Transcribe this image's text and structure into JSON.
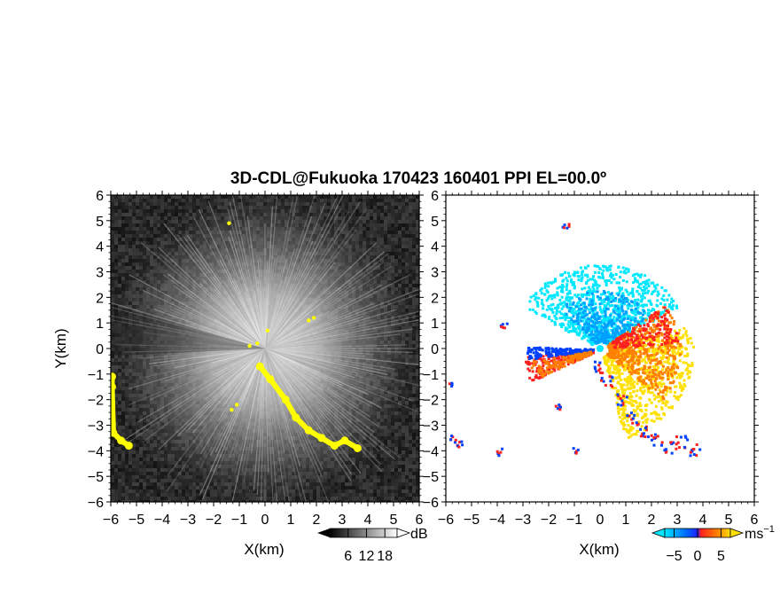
{
  "title": "3D-CDL@Fukuoka 170423 160401 PPI EL=00.0º",
  "chart_data": [
    {
      "type": "heatmap",
      "panel": "left",
      "quantity": "reflectivity / SNR",
      "xlabel": "X(km)",
      "ylabel": "Y(km)",
      "xlim": [
        -6,
        6
      ],
      "ylim": [
        -6,
        6
      ],
      "xticks": [
        "−6",
        "−5",
        "−4",
        "−3",
        "−2",
        "−1",
        "0",
        "1",
        "2",
        "3",
        "4",
        "5",
        "6"
      ],
      "yticks": [
        "−6",
        "−5",
        "−4",
        "−3",
        "−2",
        "−1",
        "0",
        "1",
        "2",
        "3",
        "4",
        "5",
        "6"
      ],
      "colorbar": {
        "unit": "dB",
        "ticks": [
          "6",
          "12",
          "18"
        ],
        "tick_values": [
          6,
          12,
          18
        ],
        "range": [
          0,
          22
        ],
        "colors": [
          "#000000",
          "#ffffff"
        ],
        "extend": "both"
      },
      "highlight_color": "#ffff00",
      "highlight_features": [
        {
          "name": "ridge",
          "points": [
            [
              -0.2,
              -0.7
            ],
            [
              0.2,
              -1.2
            ],
            [
              0.8,
              -2.0
            ],
            [
              1.2,
              -2.7
            ],
            [
              1.7,
              -3.2
            ],
            [
              2.2,
              -3.5
            ],
            [
              2.7,
              -3.8
            ],
            [
              3.1,
              -3.6
            ],
            [
              3.6,
              -3.9
            ]
          ]
        },
        {
          "name": "west-edge",
          "points": [
            [
              -5.95,
              -1.1
            ],
            [
              -5.95,
              -1.5
            ],
            [
              -5.9,
              -3.3
            ],
            [
              -5.6,
              -3.6
            ],
            [
              -5.3,
              -3.8
            ]
          ]
        },
        {
          "name": "spots",
          "points": [
            [
              -0.6,
              0.1
            ],
            [
              -0.3,
              0.2
            ],
            [
              1.7,
              1.1
            ],
            [
              1.9,
              1.2
            ],
            [
              -1.4,
              4.9
            ],
            [
              -1.1,
              -2.2
            ],
            [
              -1.3,
              -2.4
            ],
            [
              0.1,
              0.7
            ]
          ]
        }
      ]
    },
    {
      "type": "heatmap",
      "panel": "right",
      "quantity": "radial velocity",
      "xlabel": "X(km)",
      "xlim": [
        -6,
        6
      ],
      "ylim": [
        -6,
        6
      ],
      "xticks": [
        "−6",
        "−5",
        "−4",
        "−3",
        "−2",
        "−1",
        "0",
        "1",
        "2",
        "3",
        "4",
        "5",
        "6"
      ],
      "yticks": [
        "−6",
        "−5",
        "−4",
        "−3",
        "−2",
        "−1",
        "0",
        "1",
        "2",
        "3",
        "4",
        "5",
        "6"
      ],
      "colorbar": {
        "unit": "ms",
        "unit_exponent": "−1",
        "ticks": [
          "−5",
          "0",
          "5"
        ],
        "tick_values": [
          -5,
          0,
          5
        ],
        "range": [
          -7,
          7
        ],
        "colors": [
          "#00e8ff",
          "#00a0ff",
          "#0040ff",
          "#ff2020",
          "#ff8000",
          "#ffe000"
        ],
        "extend": "both"
      },
      "regions": [
        {
          "name": "approaching-north",
          "value": -5,
          "center": [
            0.3,
            1.9
          ]
        },
        {
          "name": "receding-southeast",
          "value": 4,
          "center": [
            1.6,
            -1.2
          ]
        },
        {
          "name": "shear-west-sector",
          "value": 0,
          "center": [
            -1.3,
            -0.3
          ]
        },
        {
          "name": "southeast-edge",
          "value": 0,
          "center": [
            2.8,
            -3.8
          ]
        }
      ]
    }
  ]
}
